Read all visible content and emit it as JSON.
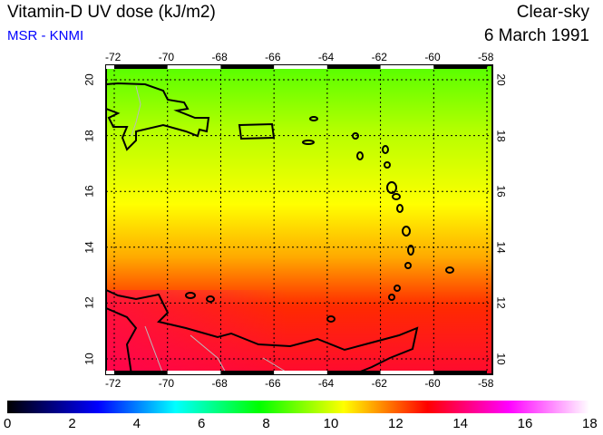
{
  "header": {
    "title": "Vitamin-D UV dose (kJ/m2)",
    "source": "MSR - KNMI",
    "sky": "Clear-sky",
    "date": "6 March 1991"
  },
  "map": {
    "lon_ticks": [
      "-72",
      "-70",
      "-68",
      "-66",
      "-64",
      "-62",
      "-60",
      "-58"
    ],
    "lat_ticks": [
      "20",
      "18",
      "16",
      "14",
      "12",
      "10"
    ],
    "lon_range": [
      -72.3,
      -57.8
    ],
    "lat_range": [
      9.5,
      20.5
    ]
  },
  "colorbar": {
    "labels": [
      "0",
      "2",
      "4",
      "6",
      "8",
      "10",
      "12",
      "14",
      "16",
      "18"
    ],
    "range": [
      0,
      18
    ],
    "stops": [
      {
        "v": 0,
        "c": "#000000"
      },
      {
        "v": 2.8,
        "c": "#0000ff"
      },
      {
        "v": 5.2,
        "c": "#00ffff"
      },
      {
        "v": 7.8,
        "c": "#00ff00"
      },
      {
        "v": 10.4,
        "c": "#ffff00"
      },
      {
        "v": 13,
        "c": "#ff0000"
      },
      {
        "v": 15.5,
        "c": "#ff00ff"
      },
      {
        "v": 18,
        "c": "#ffffff"
      }
    ]
  }
}
